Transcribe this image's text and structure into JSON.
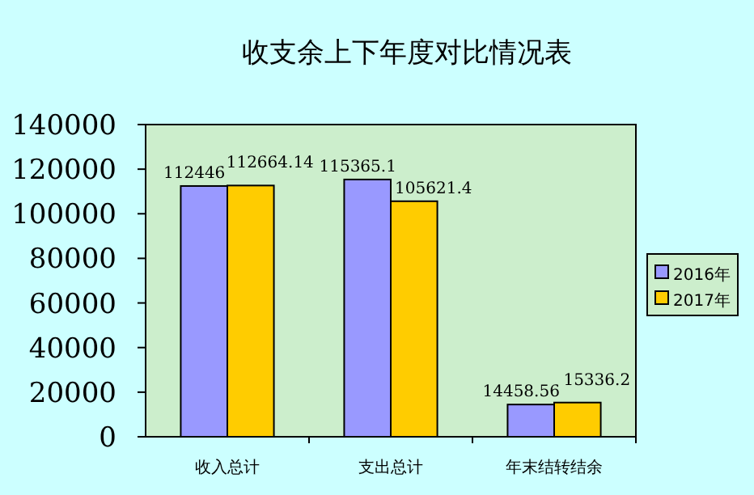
{
  "chart_data": {
    "type": "bar",
    "title": "收支余上下年度对比情况表",
    "categories": [
      "收入总计",
      "支出总计",
      "年末结转结余"
    ],
    "series": [
      {
        "name": "2016年",
        "color": "#9999ff",
        "values": [
          112446,
          115365.1,
          14458.56
        ]
      },
      {
        "name": "2017年",
        "color": "#ffcc00",
        "values": [
          112664.14,
          105621.4,
          15336.2
        ]
      }
    ],
    "ylim": [
      0,
      140000
    ],
    "yticks": [
      0,
      20000,
      40000,
      60000,
      80000,
      100000,
      120000,
      140000
    ],
    "data_labels": true,
    "legend": "right",
    "grid": false
  }
}
